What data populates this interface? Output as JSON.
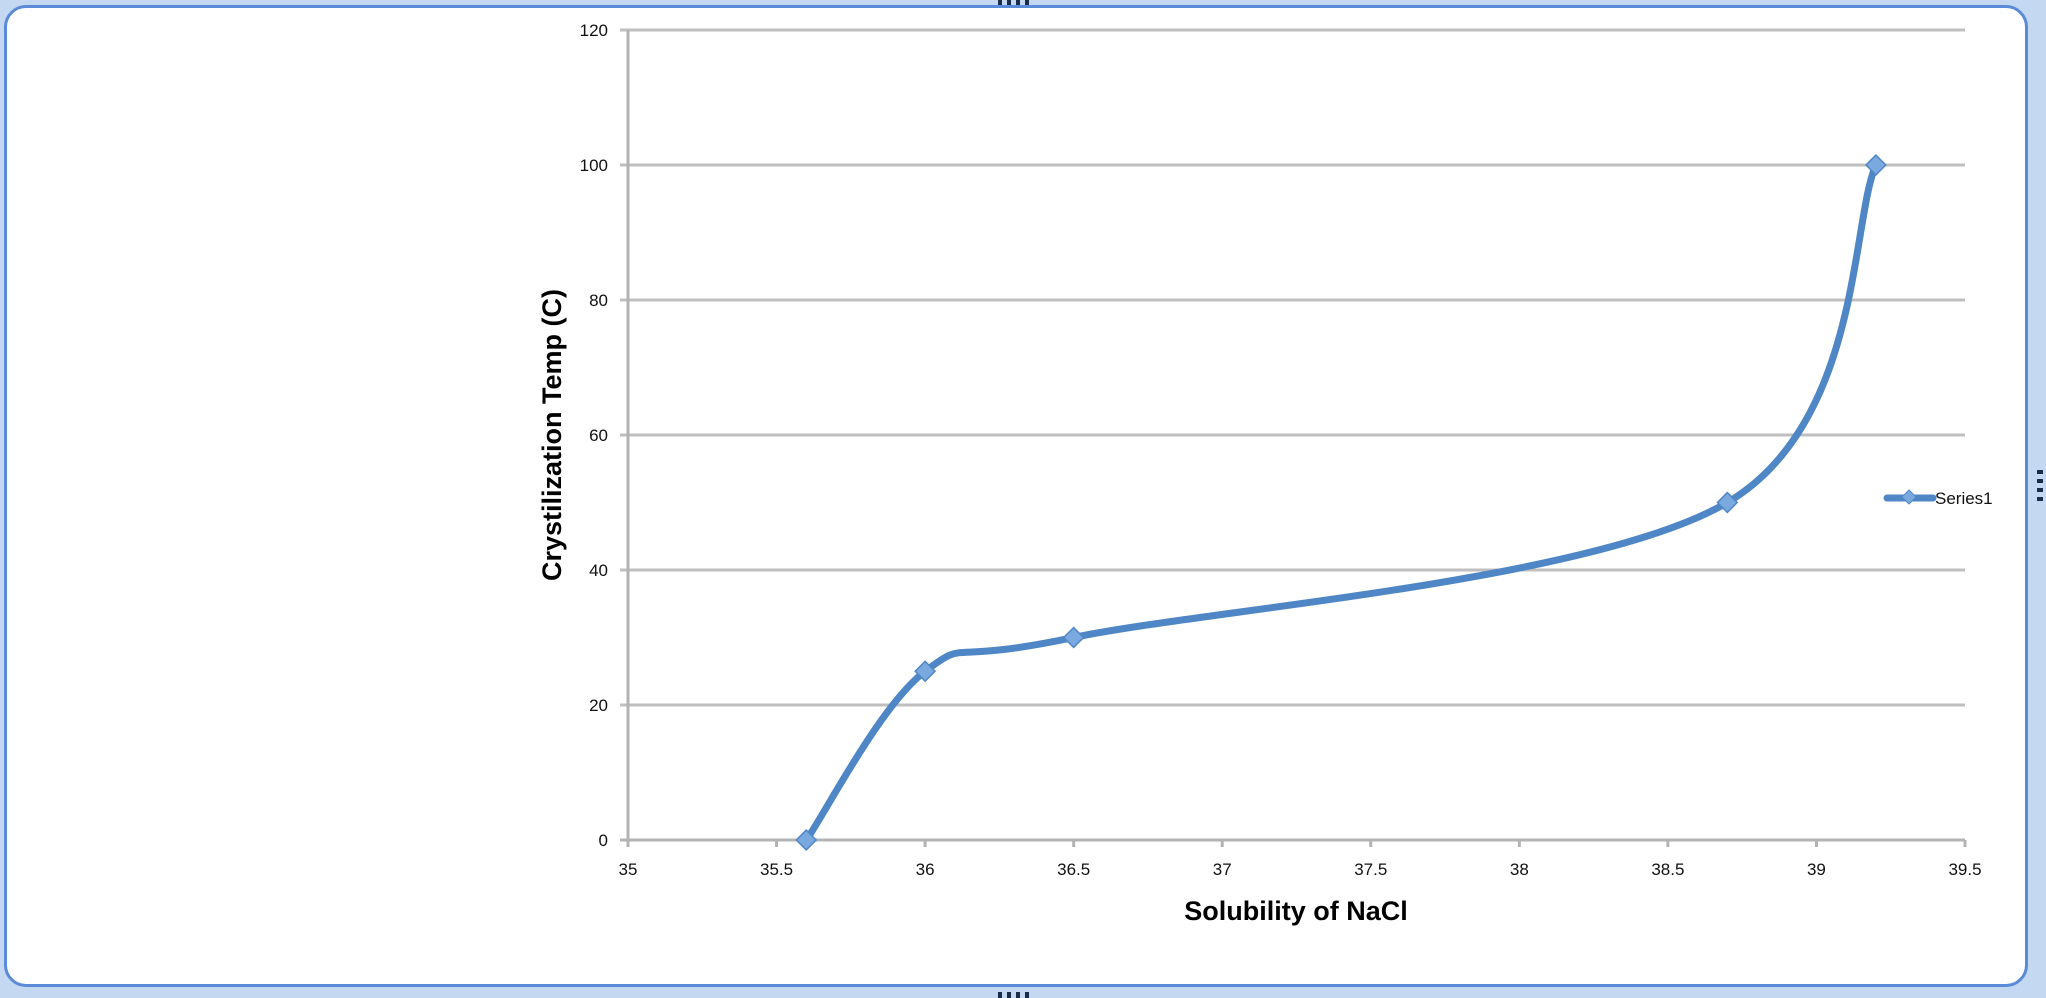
{
  "chart_data": {
    "type": "line",
    "title": "",
    "xlabel": "Solubility of NaCl",
    "ylabel": "Crystilization Temp (C)",
    "xlim": [
      35,
      39.5
    ],
    "ylim": [
      0,
      120
    ],
    "x_ticks": [
      "35",
      "35.5",
      "36",
      "36.5",
      "37",
      "37.5",
      "38",
      "38.5",
      "39",
      "39.5"
    ],
    "y_ticks": [
      "0",
      "20",
      "40",
      "60",
      "80",
      "100",
      "120"
    ],
    "grid": "horizontal",
    "smooth": true,
    "legend_position": "right",
    "series": [
      {
        "name": "Series1",
        "color": "#4f86c6",
        "marker_color": "#7aa9e0",
        "x": [
          35.6,
          36,
          36.5,
          38.7,
          39.2
        ],
        "y": [
          0,
          25,
          30,
          50,
          100
        ]
      }
    ]
  },
  "colors": {
    "frame_border": "#5b8ad8",
    "gridline": "#bfbfbf",
    "axis": "#b3b3b3"
  }
}
